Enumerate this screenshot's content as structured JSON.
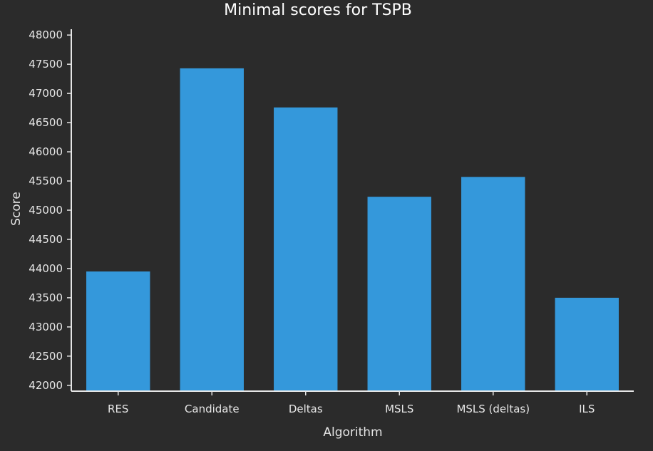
{
  "chart_data": {
    "type": "bar",
    "title": "Minimal scores for TSPB",
    "xlabel": "Algorithm",
    "ylabel": "Score",
    "categories": [
      "RES",
      "Candidate",
      "Deltas",
      "MSLS",
      "MSLS (deltas)",
      "ILS"
    ],
    "values": [
      43950,
      47430,
      46760,
      45230,
      45570,
      43500
    ],
    "ylim": [
      41900,
      48100
    ],
    "yticks": [
      42000,
      42500,
      43000,
      43500,
      44000,
      44500,
      45000,
      45500,
      46000,
      46500,
      47000,
      47500,
      48000
    ],
    "grid": false,
    "legend": "none"
  },
  "colors": {
    "background": "#2b2b2b",
    "bar": "#3498db",
    "axis": "#e6e6e6",
    "text": "#e6e6e6"
  }
}
